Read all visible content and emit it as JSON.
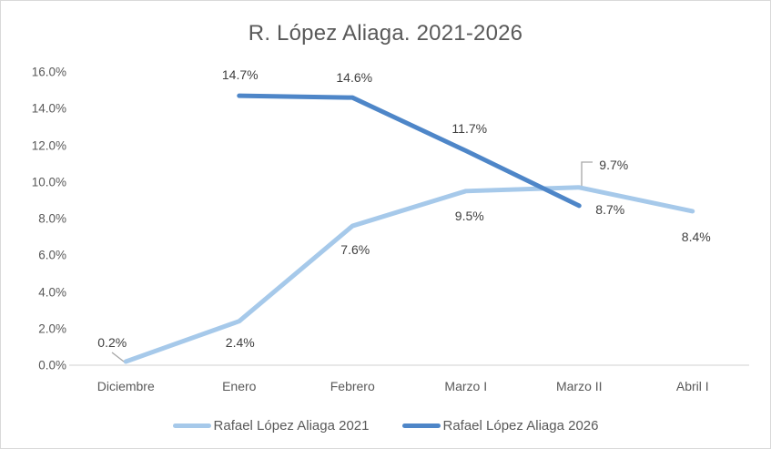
{
  "chart_data": {
    "type": "line",
    "title": "R. López Aliaga. 2021-2026",
    "categories": [
      "Diciembre",
      "Enero",
      "Febrero",
      "Marzo I",
      "Marzo II",
      "Abril I"
    ],
    "series": [
      {
        "name": "Rafael López Aliaga 2021",
        "color": "#A6C9EA",
        "values": [
          0.2,
          2.4,
          7.6,
          9.5,
          9.7,
          8.4
        ],
        "labels": [
          "0.2%",
          "2.4%",
          "7.6%",
          "9.5%",
          "9.7%",
          "8.4%"
        ]
      },
      {
        "name": "Rafael López Aliaga 2026",
        "color": "#4E86C8",
        "values": [
          null,
          14.7,
          14.6,
          11.7,
          8.7,
          null
        ],
        "labels": [
          null,
          "14.7%",
          "14.6%",
          "11.7%",
          "8.7%",
          null
        ]
      }
    ],
    "y_axis": {
      "tick_labels": [
        "0.0%",
        "2.0%",
        "4.0%",
        "6.0%",
        "8.0%",
        "10.0%",
        "12.0%",
        "14.0%",
        "16.0%"
      ],
      "min": 0,
      "max": 16,
      "step": 2
    },
    "ylim": [
      0,
      16
    ],
    "grid": false,
    "legend_position": "bottom"
  },
  "colors": {
    "background": "#FFFFFF",
    "border": "#D9D9D9",
    "axis_line": "#D9D9D9",
    "tick_text": "#595959",
    "title_text": "#595959",
    "data_label_text": "#404040",
    "leader_line": "#A6A6A6"
  }
}
